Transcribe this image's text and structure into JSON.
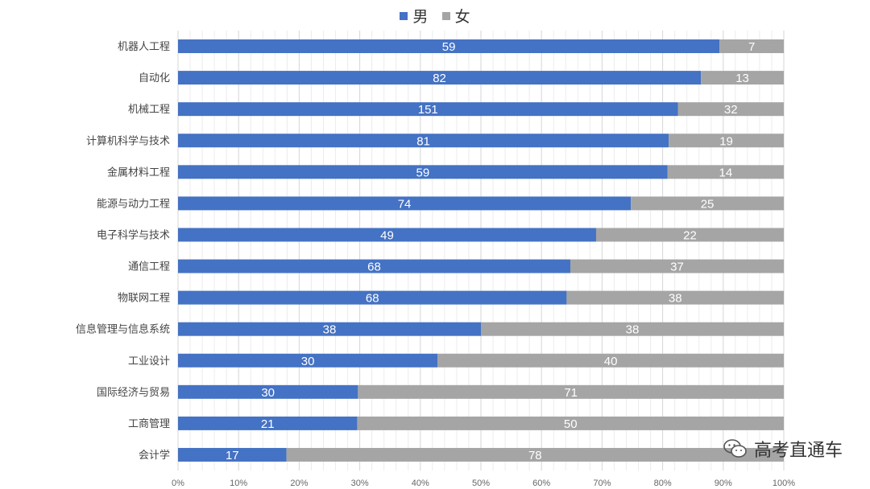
{
  "chart_data": {
    "type": "bar",
    "orientation": "horizontal",
    "stacked": "percent",
    "title": "",
    "legend": {
      "position": "top",
      "entries": [
        "男",
        "女"
      ]
    },
    "categories": [
      "机器人工程",
      "自动化",
      "机械工程",
      "计算机科学与技术",
      "金属材料工程",
      "能源与动力工程",
      "电子科学与技术",
      "通信工程",
      "物联网工程",
      "信息管理与信息系统",
      "工业设计",
      "国际经济与贸易",
      "工商管理",
      "会计学"
    ],
    "series": [
      {
        "name": "男",
        "color": "#4472C4",
        "values": [
          59,
          82,
          151,
          81,
          59,
          74,
          49,
          68,
          68,
          38,
          30,
          30,
          21,
          17
        ]
      },
      {
        "name": "女",
        "color": "#A5A5A5",
        "values": [
          7,
          13,
          32,
          19,
          14,
          25,
          22,
          37,
          38,
          38,
          40,
          71,
          50,
          78
        ]
      }
    ],
    "x_ticks": [
      "0%",
      "10%",
      "20%",
      "30%",
      "40%",
      "50%",
      "60%",
      "70%",
      "80%",
      "90%",
      "100%"
    ],
    "xlim": [
      0,
      100
    ],
    "grid": true
  },
  "watermark": {
    "text": "高考直通车",
    "icon": "wechat-icon"
  }
}
